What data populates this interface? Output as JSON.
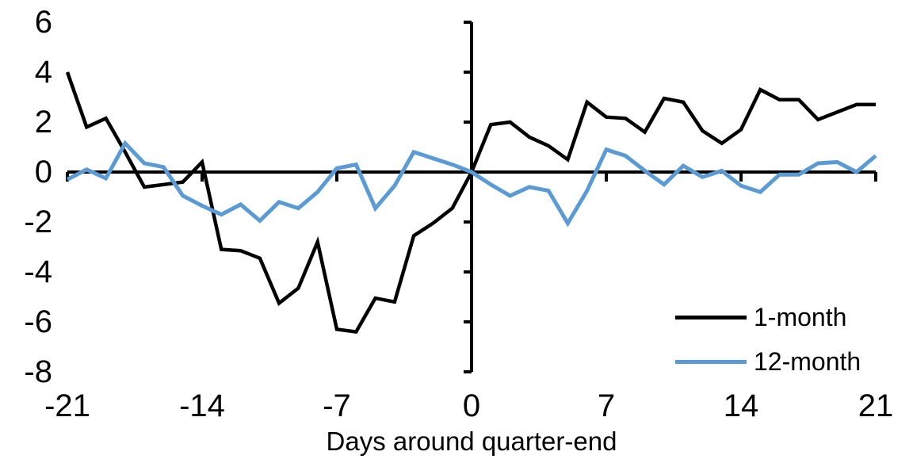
{
  "chart_data": {
    "type": "line",
    "xlabel": "Days around quarter-end",
    "x": [
      -21,
      -20,
      -19,
      -18,
      -17,
      -16,
      -15,
      -14,
      -13,
      -12,
      -11,
      -10,
      -9,
      -8,
      -7,
      -6,
      -5,
      -4,
      -3,
      -2,
      -1,
      0,
      1,
      2,
      3,
      4,
      5,
      6,
      7,
      8,
      9,
      10,
      11,
      12,
      13,
      14,
      15,
      16,
      17,
      18,
      19,
      20,
      21
    ],
    "series": [
      {
        "name": "1-month",
        "color": "#000000",
        "values": [
          4.0,
          1.8,
          2.15,
          0.8,
          -0.6,
          -0.5,
          -0.4,
          0.4,
          -3.1,
          -3.15,
          -3.45,
          -5.25,
          -4.65,
          -2.8,
          -6.3,
          -6.4,
          -5.05,
          -5.2,
          -2.55,
          -2.05,
          -1.45,
          0,
          1.9,
          2.0,
          1.4,
          1.05,
          0.5,
          2.8,
          2.2,
          2.15,
          1.6,
          2.95,
          2.8,
          1.65,
          1.15,
          1.7,
          3.3,
          2.9,
          2.9,
          2.1,
          2.4,
          2.7,
          2.7
        ]
      },
      {
        "name": "12-month",
        "color": "#5B9BD5",
        "values": [
          -0.3,
          0.1,
          -0.25,
          1.15,
          0.35,
          0.2,
          -0.95,
          -1.35,
          -1.7,
          -1.3,
          -1.95,
          -1.2,
          -1.45,
          -0.8,
          0.15,
          0.3,
          -1.45,
          -0.55,
          0.8,
          0.55,
          0.3,
          0,
          -0.5,
          -0.95,
          -0.6,
          -0.75,
          -2.05,
          -0.75,
          0.9,
          0.65,
          0.05,
          -0.5,
          0.25,
          -0.2,
          0.05,
          -0.55,
          -0.8,
          -0.1,
          -0.1,
          0.35,
          0.4,
          0,
          0.65
        ]
      }
    ],
    "x_ticks": [
      -21,
      -14,
      -7,
      0,
      7,
      14,
      21
    ],
    "y_ticks": [
      6,
      4,
      2,
      0,
      -2,
      -4,
      -6,
      -8
    ],
    "xlim": [
      -21,
      21
    ],
    "ylim": [
      -8,
      6
    ],
    "grid": false,
    "legend_position": "inside-bottom-right",
    "axis_color": "#000000"
  }
}
